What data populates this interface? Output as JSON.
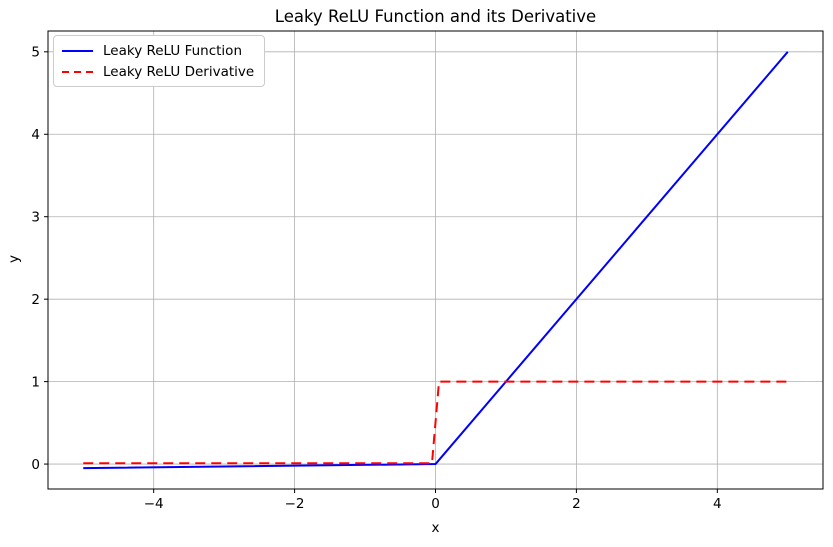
{
  "chart_data": {
    "type": "line",
    "title": "Leaky ReLU Function and its Derivative",
    "xlabel": "x",
    "ylabel": "y",
    "xlim": [
      -5.5,
      5.5
    ],
    "ylim": [
      -0.3025,
      5.2525
    ],
    "xticks": [
      -4,
      -2,
      0,
      2,
      4
    ],
    "xtick_labels": [
      "−4",
      "−2",
      "0",
      "2",
      "4"
    ],
    "yticks": [
      0,
      1,
      2,
      3,
      4,
      5
    ],
    "ytick_labels": [
      "0",
      "1",
      "2",
      "3",
      "4",
      "5"
    ],
    "grid": true,
    "grid_color": "#b0b0b0",
    "spine_color": "#000000",
    "background_color": "#ffffff",
    "legend_position": "upper left",
    "series": [
      {
        "name": "Leaky ReLU Function",
        "color": "#0000ff",
        "style": "solid",
        "line_width": 2,
        "points": [
          [
            -5,
            -0.05
          ],
          [
            0,
            0
          ],
          [
            5,
            5
          ]
        ]
      },
      {
        "name": "Leaky ReLU Derivative",
        "color": "#ff0000",
        "style": "dashed",
        "line_width": 2,
        "points": [
          [
            -5,
            0.01
          ],
          [
            -0.05,
            0.01
          ],
          [
            0.05,
            1
          ],
          [
            5,
            1
          ]
        ]
      }
    ]
  },
  "legend": {
    "entries": [
      {
        "label": "Leaky ReLU Function",
        "color": "#0000ff",
        "style": "solid"
      },
      {
        "label": "Leaky ReLU Derivative",
        "color": "#ff0000",
        "style": "dashed"
      }
    ]
  }
}
